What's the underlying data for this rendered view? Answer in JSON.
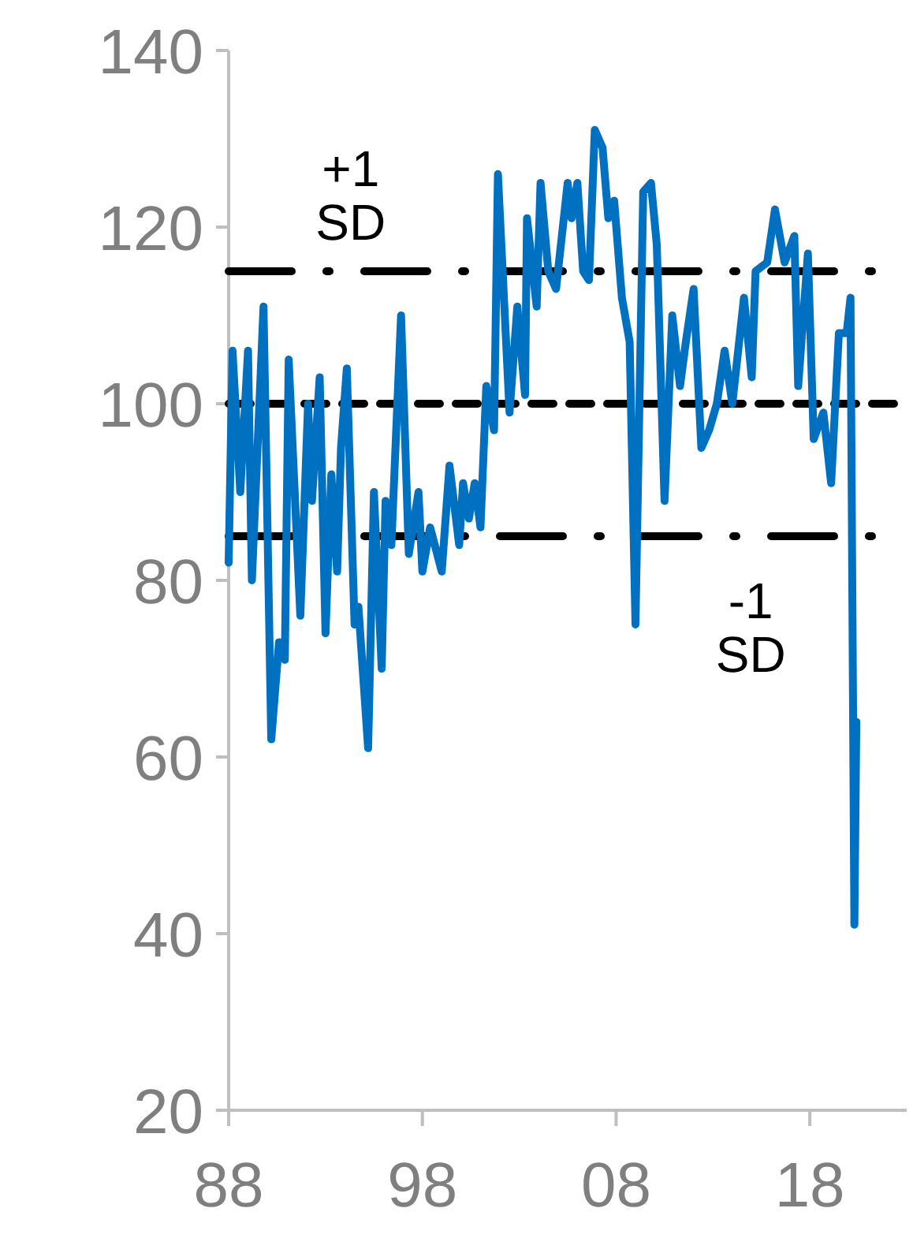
{
  "chart_data": {
    "type": "line",
    "xlim": [
      1988,
      2023
    ],
    "xticks": [
      {
        "value": 1988,
        "label": "88"
      },
      {
        "value": 1998,
        "label": "98"
      },
      {
        "value": 2008,
        "label": "08"
      },
      {
        "value": 2018,
        "label": "18"
      }
    ],
    "ylim": [
      20,
      140
    ],
    "yticks": [
      20,
      40,
      60,
      80,
      100,
      120,
      140
    ],
    "grid": false,
    "marker": "none",
    "line_style": "solid",
    "x": [
      1988.0,
      1988.2,
      1988.6,
      1989.0,
      1989.2,
      1989.8,
      1990.2,
      1990.6,
      1990.9,
      1991.1,
      1991.7,
      1992.1,
      1992.3,
      1992.7,
      1993.0,
      1993.3,
      1993.6,
      1993.8,
      1994.1,
      1994.5,
      1994.7,
      1995.2,
      1995.5,
      1995.9,
      1996.1,
      1996.4,
      1996.9,
      1997.3,
      1997.8,
      1998.0,
      1998.4,
      1999.0,
      1999.4,
      1999.9,
      2000.1,
      2000.4,
      2000.7,
      2001.0,
      2001.3,
      2001.7,
      2001.9,
      2002.5,
      2002.9,
      2003.3,
      2003.4,
      2003.9,
      2004.1,
      2004.5,
      2004.9,
      2005.2,
      2005.5,
      2005.7,
      2006.0,
      2006.3,
      2006.6,
      2006.9,
      2007.3,
      2007.6,
      2007.9,
      2008.3,
      2008.7,
      2009.0,
      2009.4,
      2009.8,
      2010.1,
      2010.5,
      2010.9,
      2011.3,
      2011.6,
      2012.0,
      2012.4,
      2012.8,
      2013.2,
      2013.6,
      2014.0,
      2014.6,
      2015.0,
      2015.2,
      2015.8,
      2016.2,
      2016.7,
      2017.2,
      2017.4,
      2017.9,
      2018.2,
      2018.7,
      2019.1,
      2019.5,
      2019.9,
      2020.1,
      2020.3,
      2020.4
    ],
    "series": [
      {
        "color": "#0070c0",
        "values": [
          82,
          106,
          90,
          106,
          80,
          111,
          62,
          73,
          71,
          105,
          76,
          100,
          89,
          103,
          74,
          92,
          81,
          95,
          104,
          75,
          77,
          61,
          90,
          70,
          89,
          84,
          110,
          83,
          90,
          81,
          86,
          81,
          93,
          84,
          91,
          87,
          91,
          86,
          102,
          97,
          126,
          99,
          111,
          101,
          121,
          111,
          125,
          115,
          113,
          119,
          125,
          121,
          125,
          115,
          114,
          131,
          129,
          121,
          123,
          112,
          107,
          75,
          124,
          125,
          118,
          89,
          110,
          102,
          107,
          113,
          95,
          97,
          100,
          106,
          100,
          112,
          103,
          115,
          116,
          122,
          116,
          119,
          102,
          117,
          96,
          99,
          91,
          108,
          108,
          112,
          41,
          64
        ]
      }
    ],
    "ref_lines": [
      {
        "axis": "y",
        "value": 115,
        "label": "+1 SD",
        "color": "#000000",
        "line_style": "dashdot"
      },
      {
        "axis": "y",
        "value": 100,
        "color": "#000000",
        "line_style": "dashed"
      },
      {
        "axis": "y",
        "value": 85,
        "label": "-1 SD",
        "color": "#000000",
        "line_style": "dashdot"
      }
    ]
  }
}
